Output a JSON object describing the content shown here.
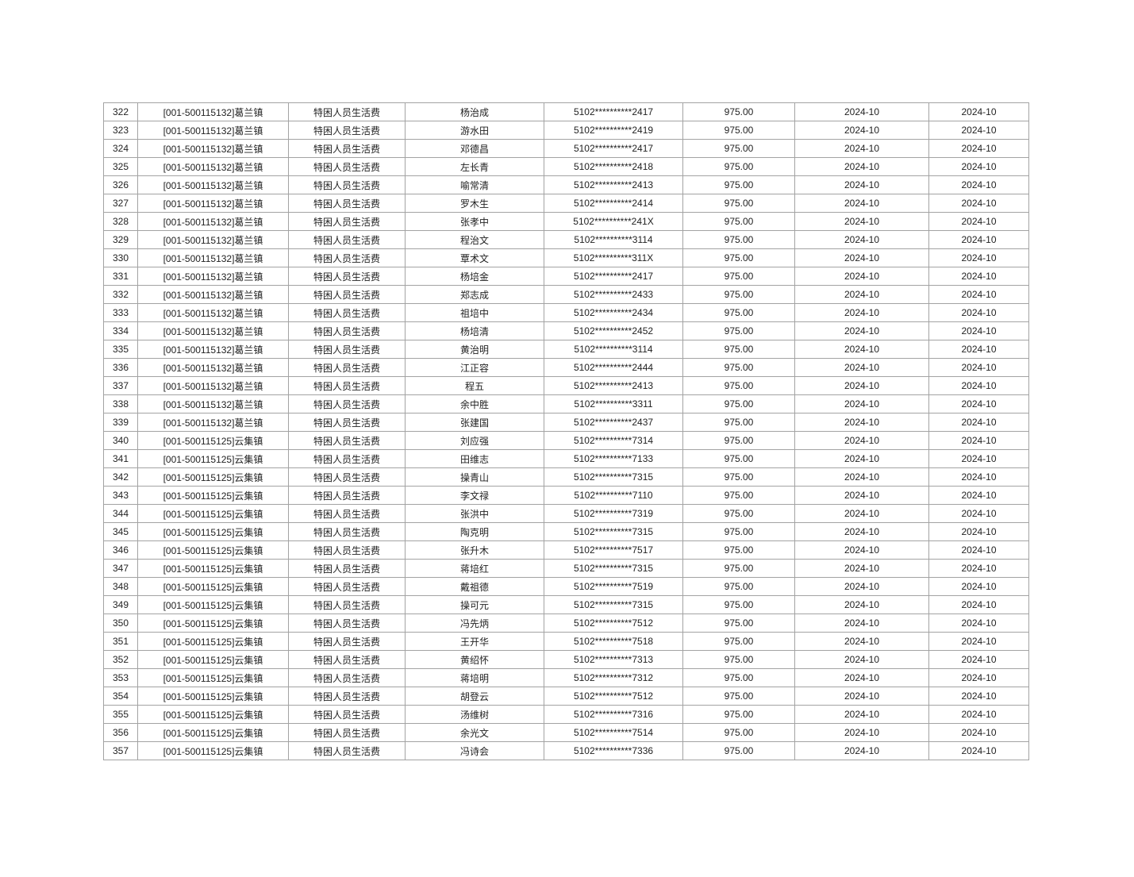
{
  "colors": {
    "page_background": "#ffffff",
    "table_border": "#a3a3a3",
    "cell_text": "#222222"
  },
  "table": {
    "column_keys": [
      "row-number",
      "org-unit",
      "subsidy-item",
      "person-name",
      "id-number-masked",
      "amount",
      "month-1",
      "month-2"
    ],
    "rows": [
      [
        "322",
        "[001-500115132]葛兰镇",
        "特困人员生活费",
        "杨治成",
        "5102**********2417",
        "975.00",
        "2024-10",
        "2024-10"
      ],
      [
        "323",
        "[001-500115132]葛兰镇",
        "特困人员生活费",
        "游水田",
        "5102**********2419",
        "975.00",
        "2024-10",
        "2024-10"
      ],
      [
        "324",
        "[001-500115132]葛兰镇",
        "特困人员生活费",
        "邓德昌",
        "5102**********2417",
        "975.00",
        "2024-10",
        "2024-10"
      ],
      [
        "325",
        "[001-500115132]葛兰镇",
        "特困人员生活费",
        "左长青",
        "5102**********2418",
        "975.00",
        "2024-10",
        "2024-10"
      ],
      [
        "326",
        "[001-500115132]葛兰镇",
        "特困人员生活费",
        "喻常清",
        "5102**********2413",
        "975.00",
        "2024-10",
        "2024-10"
      ],
      [
        "327",
        "[001-500115132]葛兰镇",
        "特困人员生活费",
        "罗木生",
        "5102**********2414",
        "975.00",
        "2024-10",
        "2024-10"
      ],
      [
        "328",
        "[001-500115132]葛兰镇",
        "特困人员生活费",
        "张孝中",
        "5102**********241X",
        "975.00",
        "2024-10",
        "2024-10"
      ],
      [
        "329",
        "[001-500115132]葛兰镇",
        "特困人员生活费",
        "程治文",
        "5102**********3114",
        "975.00",
        "2024-10",
        "2024-10"
      ],
      [
        "330",
        "[001-500115132]葛兰镇",
        "特困人员生活费",
        "覃术文",
        "5102**********311X",
        "975.00",
        "2024-10",
        "2024-10"
      ],
      [
        "331",
        "[001-500115132]葛兰镇",
        "特困人员生活费",
        "杨培金",
        "5102**********2417",
        "975.00",
        "2024-10",
        "2024-10"
      ],
      [
        "332",
        "[001-500115132]葛兰镇",
        "特困人员生活费",
        "郑志成",
        "5102**********2433",
        "975.00",
        "2024-10",
        "2024-10"
      ],
      [
        "333",
        "[001-500115132]葛兰镇",
        "特困人员生活费",
        "祖培中",
        "5102**********2434",
        "975.00",
        "2024-10",
        "2024-10"
      ],
      [
        "334",
        "[001-500115132]葛兰镇",
        "特困人员生活费",
        "杨培清",
        "5102**********2452",
        "975.00",
        "2024-10",
        "2024-10"
      ],
      [
        "335",
        "[001-500115132]葛兰镇",
        "特困人员生活费",
        "黄治明",
        "5102**********3114",
        "975.00",
        "2024-10",
        "2024-10"
      ],
      [
        "336",
        "[001-500115132]葛兰镇",
        "特困人员生活费",
        "江正容",
        "5102**********2444",
        "975.00",
        "2024-10",
        "2024-10"
      ],
      [
        "337",
        "[001-500115132]葛兰镇",
        "特困人员生活费",
        "程五",
        "5102**********2413",
        "975.00",
        "2024-10",
        "2024-10"
      ],
      [
        "338",
        "[001-500115132]葛兰镇",
        "特困人员生活费",
        "余中胜",
        "5102**********3311",
        "975.00",
        "2024-10",
        "2024-10"
      ],
      [
        "339",
        "[001-500115132]葛兰镇",
        "特困人员生活费",
        "张建国",
        "5102**********2437",
        "975.00",
        "2024-10",
        "2024-10"
      ],
      [
        "340",
        "[001-500115125]云集镇",
        "特困人员生活费",
        "刘应强",
        "5102**********7314",
        "975.00",
        "2024-10",
        "2024-10"
      ],
      [
        "341",
        "[001-500115125]云集镇",
        "特困人员生活费",
        "田维志",
        "5102**********7133",
        "975.00",
        "2024-10",
        "2024-10"
      ],
      [
        "342",
        "[001-500115125]云集镇",
        "特困人员生活费",
        "操青山",
        "5102**********7315",
        "975.00",
        "2024-10",
        "2024-10"
      ],
      [
        "343",
        "[001-500115125]云集镇",
        "特困人员生活费",
        "李文禄",
        "5102**********7110",
        "975.00",
        "2024-10",
        "2024-10"
      ],
      [
        "344",
        "[001-500115125]云集镇",
        "特困人员生活费",
        "张洪中",
        "5102**********7319",
        "975.00",
        "2024-10",
        "2024-10"
      ],
      [
        "345",
        "[001-500115125]云集镇",
        "特困人员生活费",
        "陶克明",
        "5102**********7315",
        "975.00",
        "2024-10",
        "2024-10"
      ],
      [
        "346",
        "[001-500115125]云集镇",
        "特困人员生活费",
        "张升木",
        "5102**********7517",
        "975.00",
        "2024-10",
        "2024-10"
      ],
      [
        "347",
        "[001-500115125]云集镇",
        "特困人员生活费",
        "蒋培红",
        "5102**********7315",
        "975.00",
        "2024-10",
        "2024-10"
      ],
      [
        "348",
        "[001-500115125]云集镇",
        "特困人员生活费",
        "戴祖德",
        "5102**********7519",
        "975.00",
        "2024-10",
        "2024-10"
      ],
      [
        "349",
        "[001-500115125]云集镇",
        "特困人员生活费",
        "操可元",
        "5102**********7315",
        "975.00",
        "2024-10",
        "2024-10"
      ],
      [
        "350",
        "[001-500115125]云集镇",
        "特困人员生活费",
        "冯先炳",
        "5102**********7512",
        "975.00",
        "2024-10",
        "2024-10"
      ],
      [
        "351",
        "[001-500115125]云集镇",
        "特困人员生活费",
        "王开华",
        "5102**********7518",
        "975.00",
        "2024-10",
        "2024-10"
      ],
      [
        "352",
        "[001-500115125]云集镇",
        "特困人员生活费",
        "黄绍怀",
        "5102**********7313",
        "975.00",
        "2024-10",
        "2024-10"
      ],
      [
        "353",
        "[001-500115125]云集镇",
        "特困人员生活费",
        "蒋培明",
        "5102**********7312",
        "975.00",
        "2024-10",
        "2024-10"
      ],
      [
        "354",
        "[001-500115125]云集镇",
        "特困人员生活费",
        "胡登云",
        "5102**********7512",
        "975.00",
        "2024-10",
        "2024-10"
      ],
      [
        "355",
        "[001-500115125]云集镇",
        "特困人员生活费",
        "汤维树",
        "5102**********7316",
        "975.00",
        "2024-10",
        "2024-10"
      ],
      [
        "356",
        "[001-500115125]云集镇",
        "特困人员生活费",
        "余光文",
        "5102**********7514",
        "975.00",
        "2024-10",
        "2024-10"
      ],
      [
        "357",
        "[001-500115125]云集镇",
        "特困人员生活费",
        "冯诗会",
        "5102**********7336",
        "975.00",
        "2024-10",
        "2024-10"
      ]
    ]
  }
}
